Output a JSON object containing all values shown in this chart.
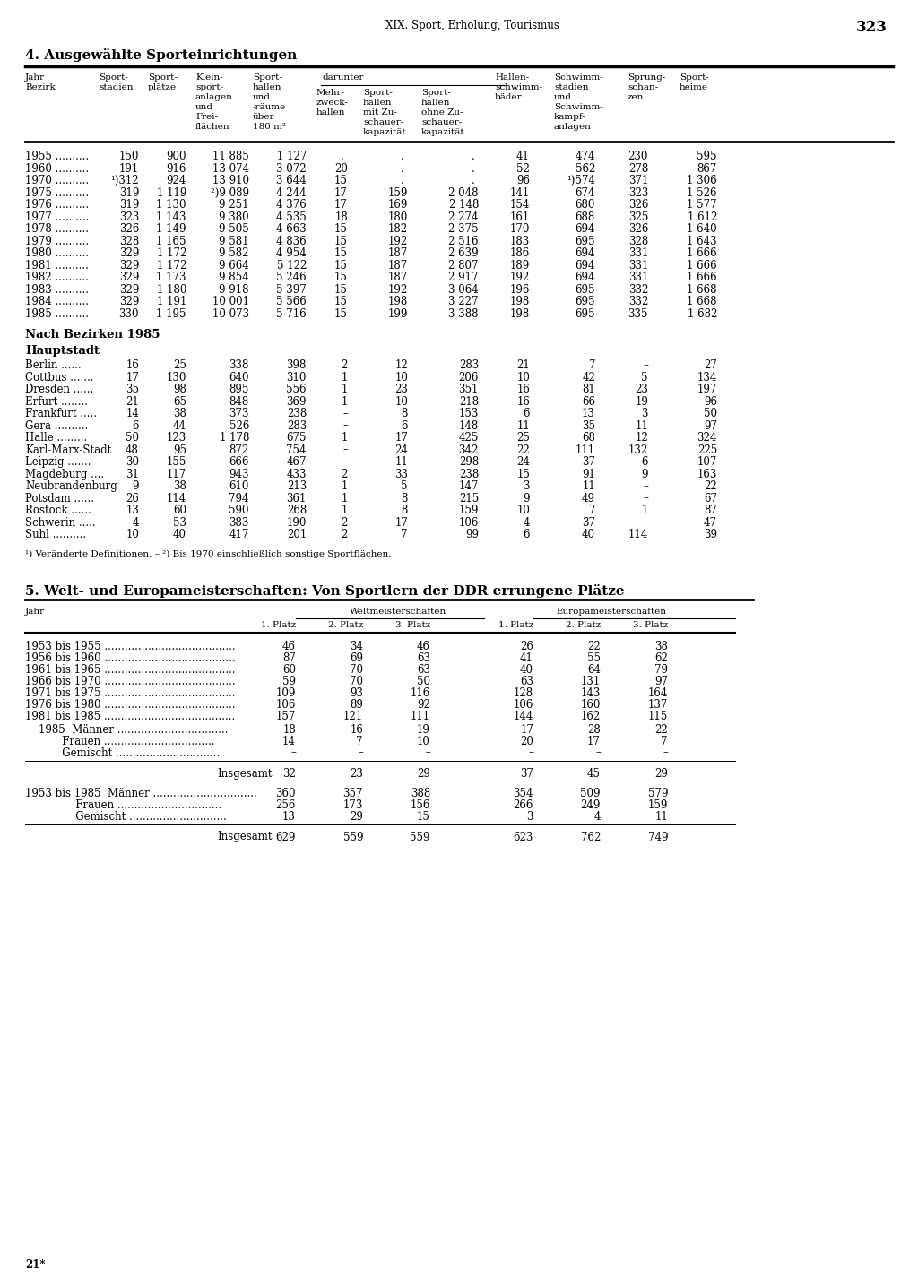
{
  "page_header": "XIX. Sport, Erholung, Tourismus",
  "page_number": "323",
  "section1_title": "4. Ausgewählte Sporteinrichtungen",
  "footnote1": "¹) Veränderte Definitionen. – ²) Bis 1970 einschließlich sonstige Sportflächen.",
  "section2_title": "5. Welt- und Europameisterschaften: Von Sportlern der DDR errungene Plätze",
  "footer": "21*",
  "background_color": "#ffffff",
  "text_color": "#000000",
  "data_rows": [
    [
      "1955 ..........",
      "150",
      "900",
      "11 885",
      "1 127",
      ".",
      ".",
      ".",
      "41",
      "474",
      "230",
      "595"
    ],
    [
      "1960 ..........",
      "191",
      "916",
      "13 074",
      "3 072",
      "20",
      ".",
      ".",
      "52",
      "562",
      "278",
      "867"
    ],
    [
      "1970 ..........",
      "¹)312",
      "924",
      "13 910",
      "3 644",
      "15",
      ".",
      ".",
      "96",
      "¹)574",
      "371",
      "1 306"
    ],
    [
      "1975 ..........",
      "319",
      "1 119",
      "²)9 089",
      "4 244",
      "17",
      "159",
      "2 048",
      "141",
      "674",
      "323",
      "1 526"
    ],
    [
      "1976 ..........",
      "319",
      "1 130",
      "9 251",
      "4 376",
      "17",
      "169",
      "2 148",
      "154",
      "680",
      "326",
      "1 577"
    ],
    [
      "1977 ..........",
      "323",
      "1 143",
      "9 380",
      "4 535",
      "18",
      "180",
      "2 274",
      "161",
      "688",
      "325",
      "1 612"
    ],
    [
      "1978 ..........",
      "326",
      "1 149",
      "9 505",
      "4 663",
      "15",
      "182",
      "2 375",
      "170",
      "694",
      "326",
      "1 640"
    ],
    [
      "1979 ..........",
      "328",
      "1 165",
      "9 581",
      "4 836",
      "15",
      "192",
      "2 516",
      "183",
      "695",
      "328",
      "1 643"
    ],
    [
      "1980 ..........",
      "329",
      "1 172",
      "9 582",
      "4 954",
      "15",
      "187",
      "2 639",
      "186",
      "694",
      "331",
      "1 666"
    ],
    [
      "1981 ..........",
      "329",
      "1 172",
      "9 664",
      "5 122",
      "15",
      "187",
      "2 807",
      "189",
      "694",
      "331",
      "1 666"
    ],
    [
      "1982 ..........",
      "329",
      "1 173",
      "9 854",
      "5 246",
      "15",
      "187",
      "2 917",
      "192",
      "694",
      "331",
      "1 666"
    ],
    [
      "1983 ..........",
      "329",
      "1 180",
      "9 918",
      "5 397",
      "15",
      "192",
      "3 064",
      "196",
      "695",
      "332",
      "1 668"
    ],
    [
      "1984 ..........",
      "329",
      "1 191",
      "10 001",
      "5 566",
      "15",
      "198",
      "3 227",
      "198",
      "695",
      "332",
      "1 668"
    ],
    [
      "1985 ..........",
      "330",
      "1 195",
      "10 073",
      "5 716",
      "15",
      "199",
      "3 388",
      "198",
      "695",
      "335",
      "1 682"
    ]
  ],
  "bezirk_rows": [
    [
      "Berlin ......",
      "16",
      "25",
      "338",
      "398",
      "2",
      "12",
      "283",
      "21",
      "7",
      "–",
      "27"
    ],
    [
      "Cottbus .......",
      "17",
      "130",
      "640",
      "310",
      "1",
      "10",
      "206",
      "10",
      "42",
      "5",
      "134"
    ],
    [
      "Dresden ......",
      "35",
      "98",
      "895",
      "556",
      "1",
      "23",
      "351",
      "16",
      "81",
      "23",
      "197"
    ],
    [
      "Erfurt ........",
      "21",
      "65",
      "848",
      "369",
      "1",
      "10",
      "218",
      "16",
      "66",
      "19",
      "96"
    ],
    [
      "Frankfurt .....",
      "14",
      "38",
      "373",
      "238",
      "–",
      "8",
      "153",
      "6",
      "13",
      "3",
      "50"
    ],
    [
      "Gera ..........",
      "6",
      "44",
      "526",
      "283",
      "–",
      "6",
      "148",
      "11",
      "35",
      "11",
      "97"
    ],
    [
      "Halle .........",
      "50",
      "123",
      "1 178",
      "675",
      "1",
      "17",
      "425",
      "25",
      "68",
      "12",
      "324"
    ],
    [
      "Karl-Marx-Stadt",
      "48",
      "95",
      "872",
      "754",
      "–",
      "24",
      "342",
      "22",
      "111",
      "132",
      "225"
    ],
    [
      "Leipzig .......",
      "30",
      "155",
      "666",
      "467",
      "–",
      "11",
      "298",
      "24",
      "37",
      "6",
      "107"
    ],
    [
      "Magdeburg ....",
      "31",
      "117",
      "943",
      "433",
      "2",
      "33",
      "238",
      "15",
      "91",
      "9",
      "163"
    ],
    [
      "Neubrandenburg",
      "9",
      "38",
      "610",
      "213",
      "1",
      "5",
      "147",
      "3",
      "11",
      "–",
      "22"
    ],
    [
      "Potsdam ......",
      "26",
      "114",
      "794",
      "361",
      "1",
      "8",
      "215",
      "9",
      "49",
      "–",
      "67"
    ],
    [
      "Rostock ......",
      "13",
      "60",
      "590",
      "268",
      "1",
      "8",
      "159",
      "10",
      "7",
      "1",
      "87"
    ],
    [
      "Schwerin .....",
      "4",
      "53",
      "383",
      "190",
      "2",
      "17",
      "106",
      "4",
      "37",
      "–",
      "47"
    ],
    [
      "Suhl ..........",
      "10",
      "40",
      "417",
      "201",
      "2",
      "7",
      "99",
      "6",
      "40",
      "114",
      "39"
    ]
  ],
  "s2_data": [
    [
      "1953 bis 1955 .......................................",
      "46",
      "34",
      "46",
      "26",
      "22",
      "38"
    ],
    [
      "1956 bis 1960 .......................................",
      "87",
      "69",
      "63",
      "41",
      "55",
      "62"
    ],
    [
      "1961 bis 1965 .......................................",
      "60",
      "70",
      "63",
      "40",
      "64",
      "79"
    ],
    [
      "1966 bis 1970 .......................................",
      "59",
      "70",
      "50",
      "63",
      "131",
      "97"
    ],
    [
      "1971 bis 1975 .......................................",
      "109",
      "93",
      "116",
      "128",
      "143",
      "164"
    ],
    [
      "1976 bis 1980 .......................................",
      "106",
      "89",
      "92",
      "106",
      "160",
      "137"
    ],
    [
      "1981 bis 1985 .......................................",
      "157",
      "121",
      "111",
      "144",
      "162",
      "115"
    ]
  ],
  "s2_1985_rows": [
    [
      "    1985  Männer .................................",
      "18",
      "16",
      "19",
      "17",
      "28",
      "22"
    ],
    [
      "           Frauen .................................",
      "14",
      "7",
      "10",
      "20",
      "17",
      "7"
    ],
    [
      "           Gemischt ...............................",
      "–",
      "–",
      "–",
      "–",
      "–",
      "–"
    ]
  ],
  "s2_ins1": [
    "32",
    "23",
    "29",
    "37",
    "45",
    "29"
  ],
  "s2_total_rows": [
    [
      "1953 bis 1985  Männer ...............................",
      "360",
      "357",
      "388",
      "354",
      "509",
      "579"
    ],
    [
      "               Frauen ...............................",
      "256",
      "173",
      "156",
      "266",
      "249",
      "159"
    ],
    [
      "               Gemischt .............................",
      "13",
      "29",
      "15",
      "3",
      "4",
      "11"
    ]
  ],
  "s2_ins2": [
    "629",
    "559",
    "559",
    "623",
    "762",
    "749"
  ]
}
